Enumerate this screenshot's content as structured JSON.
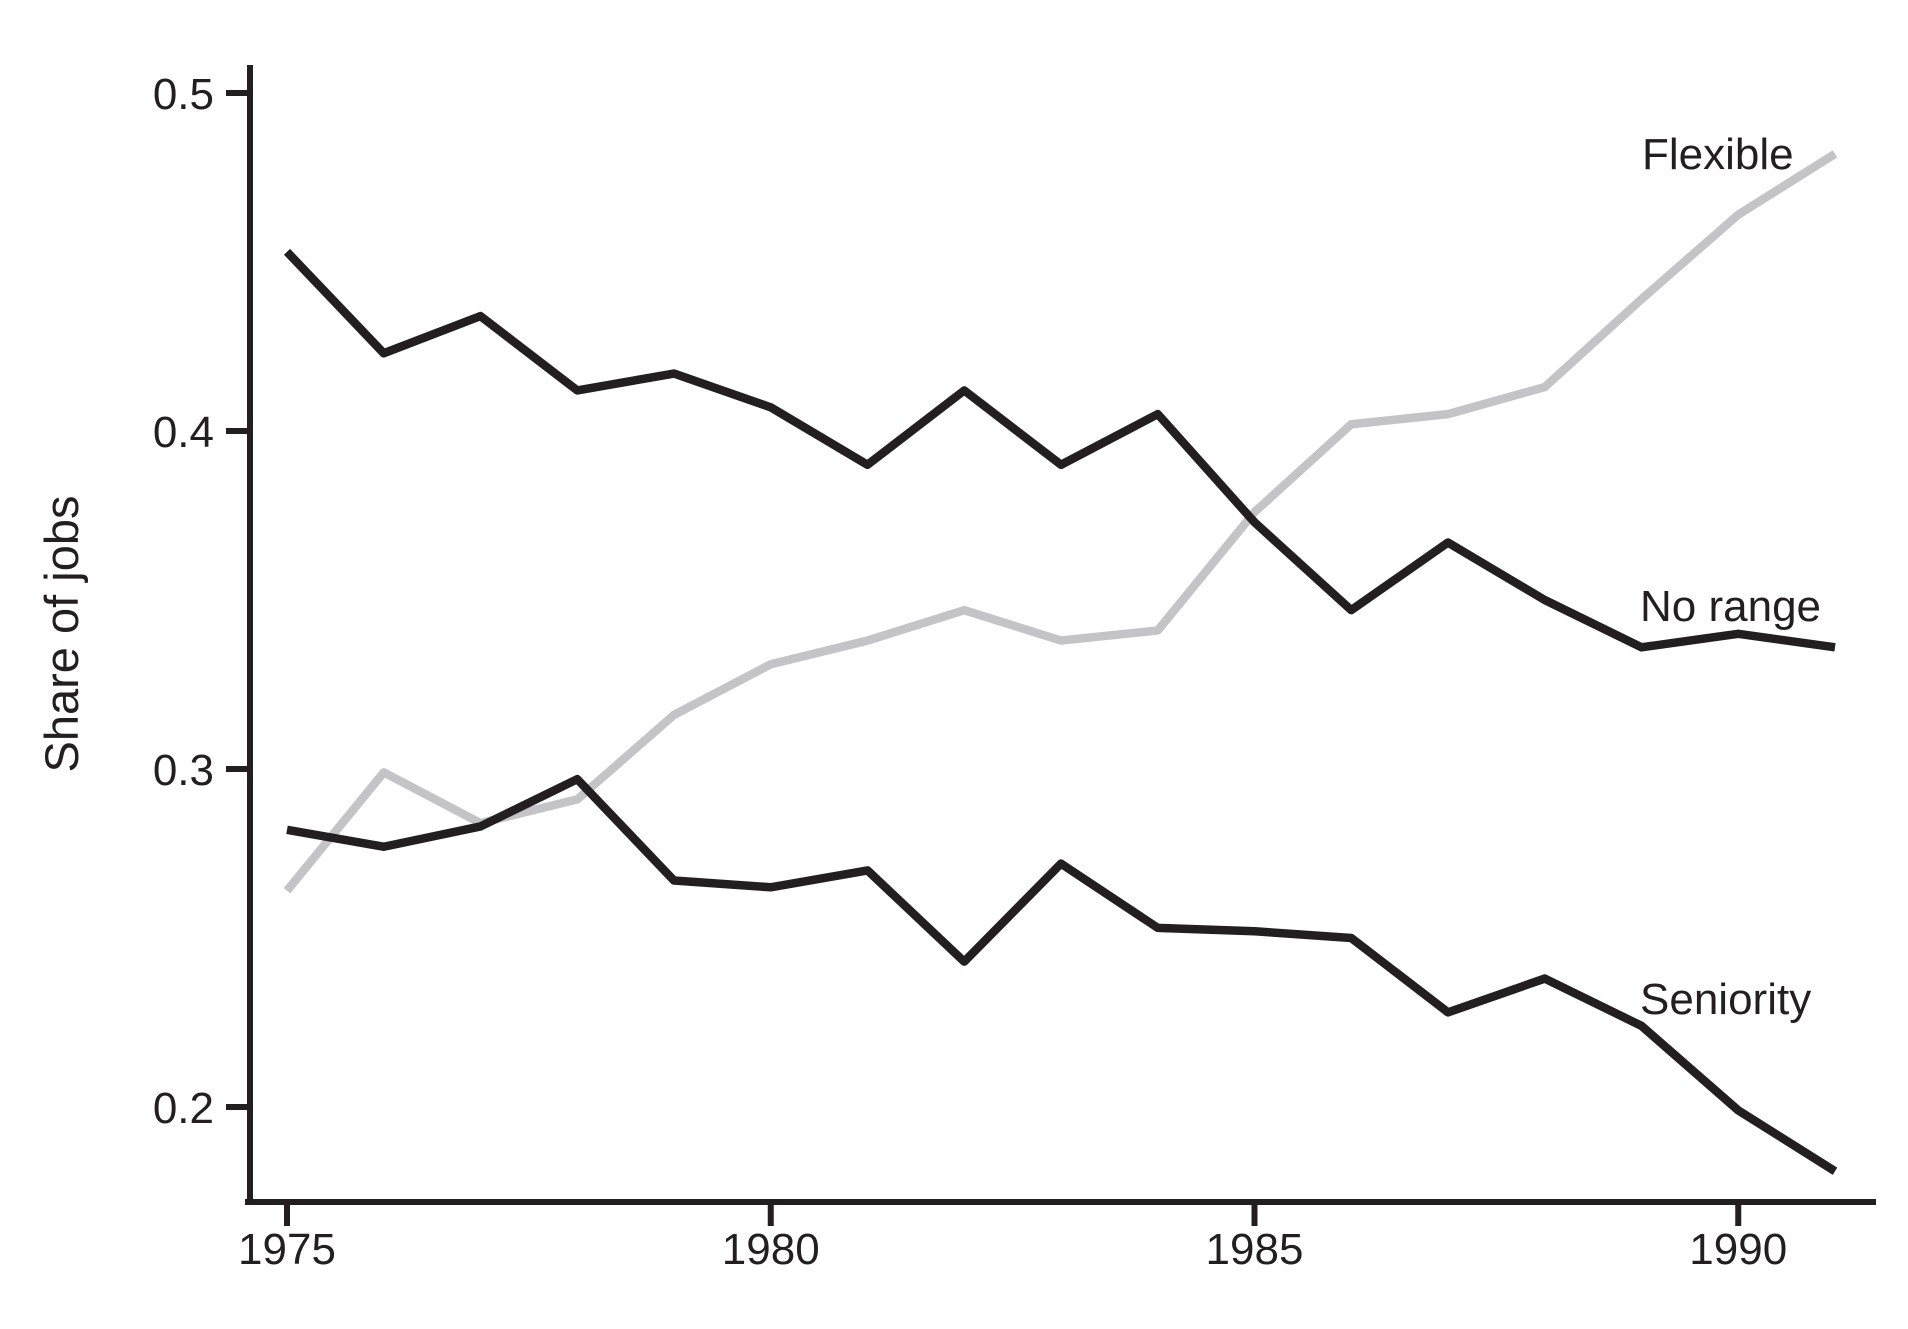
{
  "figure": {
    "background": "#ffffff"
  },
  "axis": {
    "color": "#231f20",
    "tick_label_color": "#231f20"
  },
  "chart_data": {
    "type": "line",
    "title": "",
    "xlabel": "",
    "ylabel": "Share of jobs",
    "grid": false,
    "legend": "inline-labels-at-line-ends",
    "x": [
      1975,
      1976,
      1977,
      1978,
      1979,
      1980,
      1981,
      1982,
      1983,
      1984,
      1985,
      1986,
      1987,
      1988,
      1989,
      1990,
      1991
    ],
    "xlim": [
      1974.6,
      1991.4
    ],
    "ylim": [
      0.172,
      0.508
    ],
    "x_ticks": [
      {
        "label": "1975",
        "value": 1975
      },
      {
        "label": "1980",
        "value": 1980
      },
      {
        "label": "1985",
        "value": 1985
      },
      {
        "label": "1990",
        "value": 1990
      }
    ],
    "y_ticks": [
      {
        "label": "0.5",
        "value": 0.5
      },
      {
        "label": "0.4",
        "value": 0.4
      },
      {
        "label": "0.3",
        "value": 0.3
      },
      {
        "label": "0.2",
        "value": 0.2
      }
    ],
    "series": [
      {
        "name": "Flexible",
        "color": "#c4c4c6",
        "values": [
          0.264,
          0.299,
          0.284,
          0.291,
          0.316,
          0.331,
          0.338,
          0.347,
          0.338,
          0.341,
          0.376,
          0.402,
          0.405,
          0.413,
          0.439,
          0.464,
          0.482
        ]
      },
      {
        "name": "No range",
        "color": "#231f20",
        "values": [
          0.453,
          0.423,
          0.434,
          0.412,
          0.417,
          0.407,
          0.39,
          0.412,
          0.39,
          0.405,
          0.373,
          0.347,
          0.367,
          0.35,
          0.336,
          0.34,
          0.336
        ]
      },
      {
        "name": "Seniority",
        "color": "#231f20",
        "values": [
          0.282,
          0.277,
          0.283,
          0.297,
          0.267,
          0.265,
          0.27,
          0.243,
          0.272,
          0.253,
          0.252,
          0.25,
          0.228,
          0.238,
          0.224,
          0.199,
          0.181
        ]
      }
    ]
  }
}
